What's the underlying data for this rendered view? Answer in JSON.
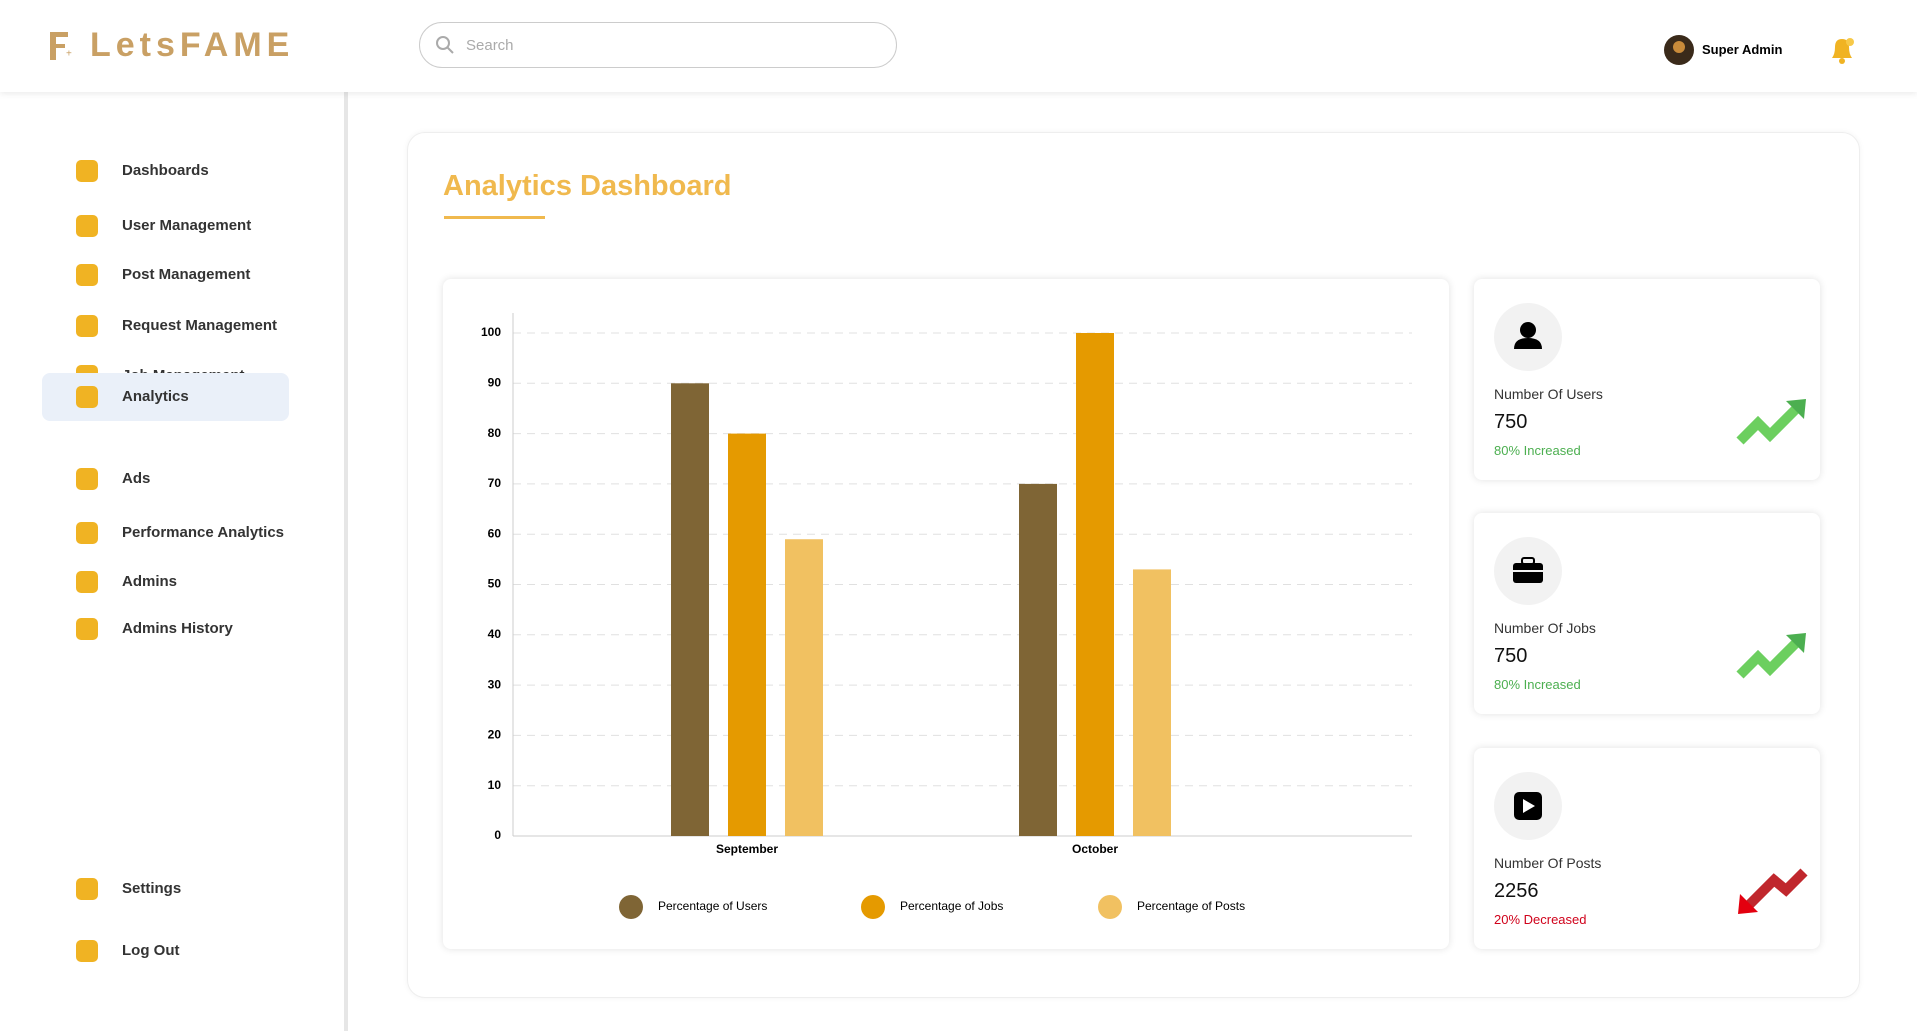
{
  "header": {
    "brand": "LetsFAME",
    "search_placeholder": "Search",
    "user": "Super Admin"
  },
  "sidebar": {
    "items": [
      "Dashboards",
      "User Management",
      "Post Management",
      "Request Management",
      "Job Management",
      "Analytics",
      "Ads",
      "Performance Analytics",
      "Admins",
      "Admins History"
    ],
    "active": 5,
    "bottom": [
      "Settings",
      "Log Out"
    ]
  },
  "page_title": "Analytics Dashboard",
  "chart_data": {
    "type": "bar",
    "categories": [
      "September",
      "October"
    ],
    "series": [
      {
        "name": "Percentage of Users",
        "color": "#7f6535",
        "values": [
          90,
          70
        ]
      },
      {
        "name": "Percentage of Jobs",
        "color": "#e59a00",
        "values": [
          80,
          100
        ]
      },
      {
        "name": "Percentage of Posts",
        "color": "#f1c161",
        "values": [
          59,
          53
        ]
      }
    ],
    "ylim": [
      0,
      100
    ],
    "yticks": [
      0,
      10,
      20,
      30,
      40,
      50,
      60,
      70,
      80,
      90,
      100
    ],
    "grid": true
  },
  "stats": [
    {
      "label": "Number Of Users",
      "value": 750,
      "change": "80% Increased",
      "color": "#4caf50"
    },
    {
      "label": "Number Of Jobs",
      "value": 750,
      "change": "80% Increased",
      "color": "#4caf50"
    },
    {
      "label": "Number Of Posts",
      "value": 2256,
      "change": "20% Decreased",
      "color": "#d0021b"
    }
  ]
}
